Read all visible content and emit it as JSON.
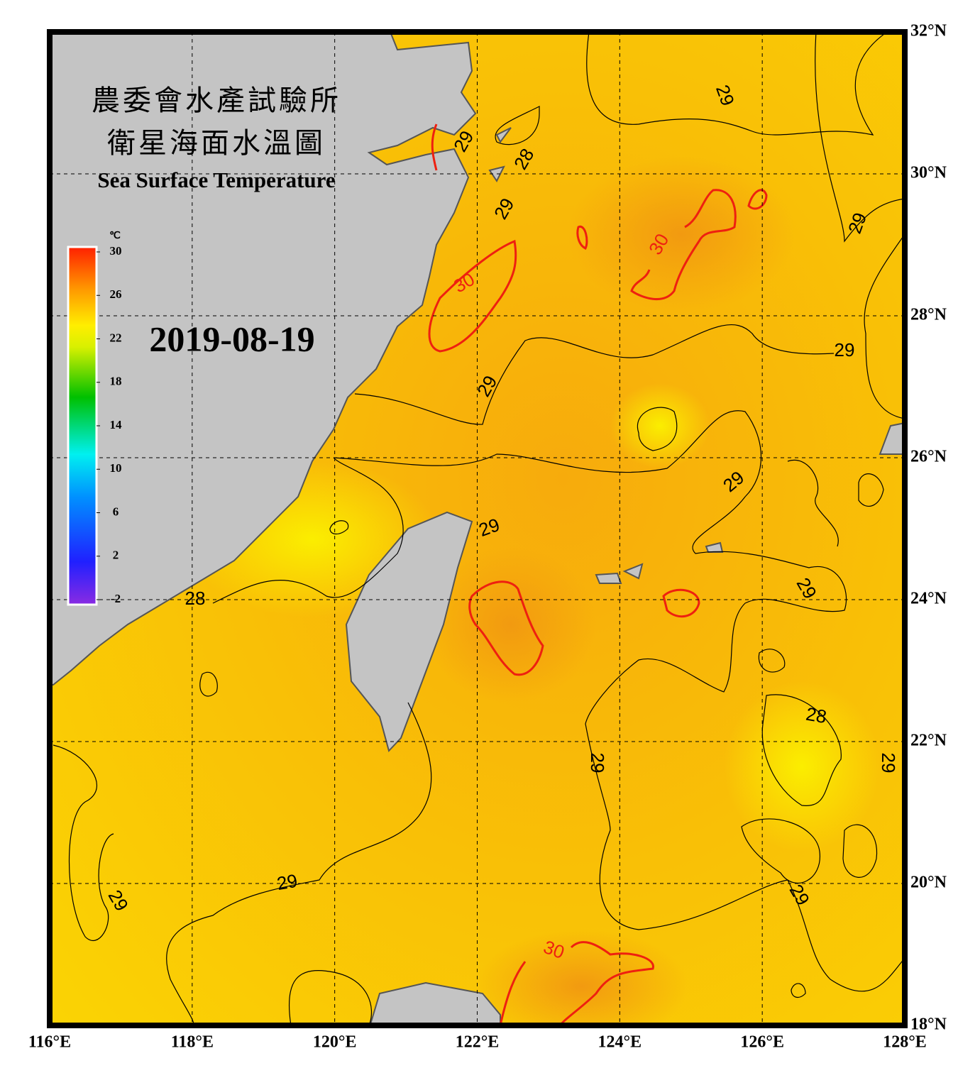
{
  "title_zh": [
    "農委會水產試驗所",
    "衛星海面水溫圖"
  ],
  "title_en": "Sea Surface Temperature",
  "date": "2019-08-19",
  "colorbar": {
    "unit": "℃",
    "lim": [
      -2,
      30
    ],
    "ticks": [
      30,
      26,
      22,
      18,
      14,
      10,
      6,
      2,
      -2
    ]
  },
  "map": {
    "lonlim": [
      116,
      128
    ],
    "latlim": [
      18,
      32
    ],
    "grid": true,
    "lon_ticks": [
      {
        "value": 116,
        "label": "116°E"
      },
      {
        "value": 118,
        "label": "118°E"
      },
      {
        "value": 120,
        "label": "120°E"
      },
      {
        "value": 122,
        "label": "122°E"
      },
      {
        "value": 124,
        "label": "124°E"
      },
      {
        "value": 126,
        "label": "126°E"
      },
      {
        "value": 128,
        "label": "128°E"
      }
    ],
    "lat_ticks": [
      {
        "value": 32,
        "label": "32°N"
      },
      {
        "value": 30,
        "label": "30°N"
      },
      {
        "value": 28,
        "label": "28°N"
      },
      {
        "value": 26,
        "label": "26°N"
      },
      {
        "value": 24,
        "label": "24°N"
      },
      {
        "value": 22,
        "label": "22°N"
      },
      {
        "value": 20,
        "label": "20°N"
      },
      {
        "value": 18,
        "label": "18°N"
      }
    ]
  },
  "contour_labels": [
    29,
    29,
    28,
    29,
    30,
    29,
    30,
    29,
    29,
    29,
    29,
    29,
    28,
    28,
    29,
    29,
    29,
    29,
    29,
    30
  ]
}
